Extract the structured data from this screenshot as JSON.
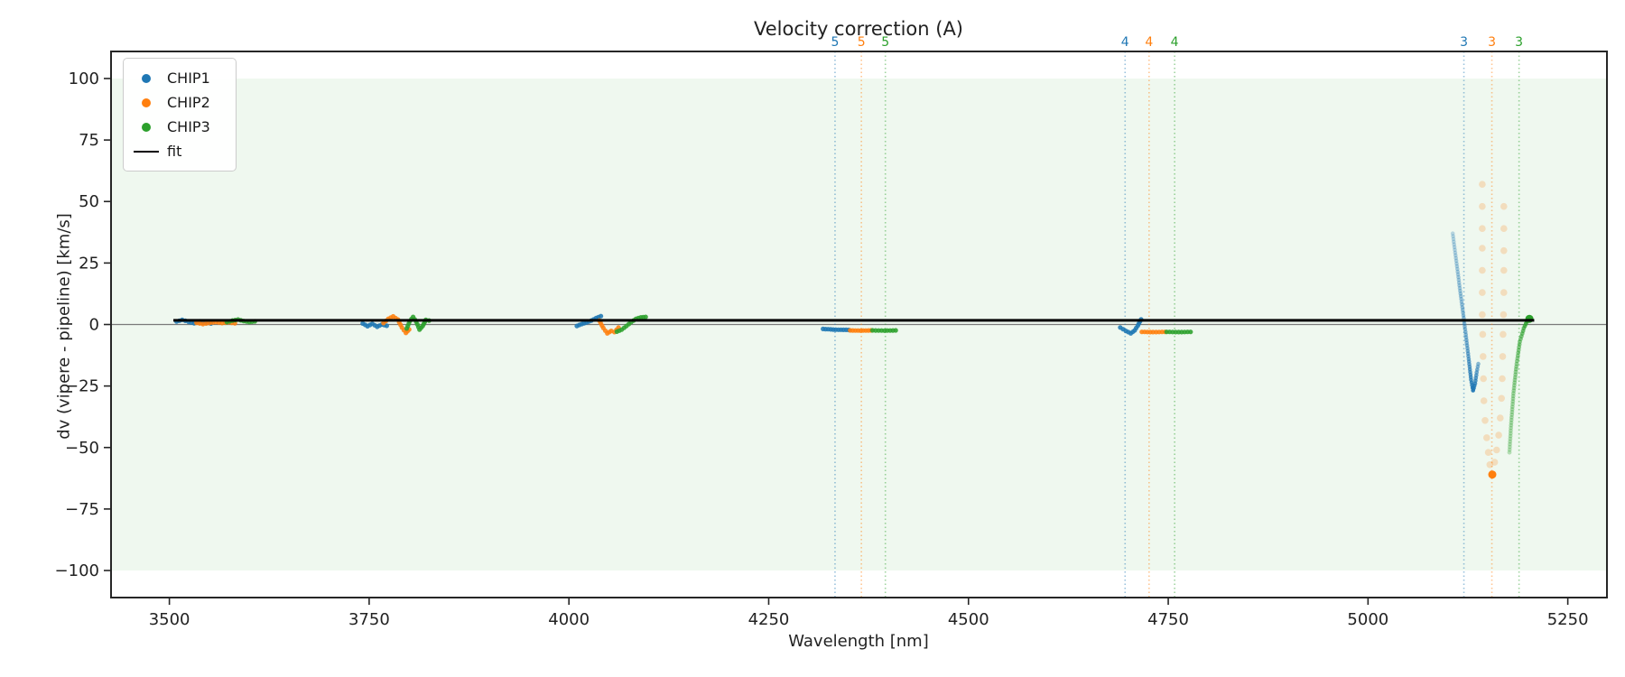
{
  "chart_data": {
    "type": "scatter",
    "title": "Velocity correction (A)",
    "xlabel": "Wavelength [nm]",
    "ylabel": "dv (vipere - pipeline) [km/s]",
    "xlim": [
      3427,
      5299
    ],
    "ylim": [
      -111,
      111
    ],
    "xticks": [
      3500,
      3750,
      4000,
      4250,
      4500,
      4750,
      5000,
      5250
    ],
    "yticks": [
      100,
      75,
      50,
      25,
      0,
      -25,
      -50,
      -75,
      -100
    ],
    "grid": false,
    "legend_position": "upper left",
    "colors": {
      "CHIP1": "#1f77b4",
      "CHIP2": "#ff7f0e",
      "CHIP3": "#2ca02c",
      "fit": "#000000",
      "zero_line": "#7a7a7a",
      "band": "rgba(44,160,44,0.075)",
      "spine": "#262626"
    },
    "band": {
      "ymin": -100,
      "ymax": 100
    },
    "zero_line_y": 0,
    "fit": {
      "label": "fit",
      "y": 1.7,
      "x_start": 3505,
      "x_end": 5208
    },
    "legend": [
      {
        "label": "CHIP1",
        "marker": "dot",
        "color": "#1f77b4"
      },
      {
        "label": "CHIP2",
        "marker": "dot",
        "color": "#ff7f0e"
      },
      {
        "label": "CHIP3",
        "marker": "dot",
        "color": "#2ca02c"
      },
      {
        "label": "fit",
        "marker": "line",
        "color": "#000000"
      }
    ],
    "vlines": [
      {
        "x": 4333,
        "label": "5",
        "color": "#1f77b4"
      },
      {
        "x": 4366,
        "label": "5",
        "color": "#ff7f0e"
      },
      {
        "x": 4396,
        "label": "5",
        "color": "#2ca02c"
      },
      {
        "x": 4696,
        "label": "4",
        "color": "#1f77b4"
      },
      {
        "x": 4726,
        "label": "4",
        "color": "#ff7f0e"
      },
      {
        "x": 4758,
        "label": "4",
        "color": "#2ca02c"
      },
      {
        "x": 5120,
        "label": "3",
        "color": "#1f77b4"
      },
      {
        "x": 5155,
        "label": "3",
        "color": "#ff7f0e"
      },
      {
        "x": 5189,
        "label": "3",
        "color": "#2ca02c"
      }
    ],
    "series": [
      {
        "name": "CHIP1",
        "color": "#1f77b4",
        "segments": [
          {
            "mode": "dense",
            "r": 2.6,
            "points": [
              [
                3509,
                1.2
              ],
              [
                3516,
                1.9
              ],
              [
                3524,
                1.1
              ],
              [
                3531,
                0.5
              ],
              [
                3538,
                1.3
              ],
              [
                3545,
                1.0
              ],
              [
                3552,
                0.4
              ]
            ]
          },
          {
            "mode": "dense",
            "r": 2.6,
            "points": [
              [
                3742,
                0.4
              ],
              [
                3748,
                -0.7
              ],
              [
                3754,
                0.3
              ],
              [
                3760,
                -0.9
              ],
              [
                3766,
                0.0
              ],
              [
                3772,
                -0.5
              ]
            ]
          },
          {
            "mode": "dense",
            "r": 2.6,
            "points": [
              [
                4010,
                -0.6
              ],
              [
                4016,
                0.2
              ],
              [
                4022,
                0.8
              ],
              [
                4028,
                1.6
              ],
              [
                4034,
                2.6
              ],
              [
                4040,
                3.4
              ]
            ]
          },
          {
            "mode": "dense",
            "r": 2.6,
            "points": [
              [
                4318,
                -1.8
              ],
              [
                4334,
                -2.1
              ],
              [
                4350,
                -2.2
              ]
            ]
          },
          {
            "mode": "dense",
            "r": 2.6,
            "points": [
              [
                4690,
                -1.2
              ],
              [
                4697,
                -2.6
              ],
              [
                4703,
                -3.6
              ],
              [
                4708,
                -2.4
              ],
              [
                4712,
                -0.4
              ],
              [
                4716,
                2.1
              ]
            ]
          },
          {
            "mode": "dense",
            "r": 2.3,
            "points": [
              [
                5106,
                37,
                0.28
              ],
              [
                5110,
                27,
                0.33
              ],
              [
                5114,
                17,
                0.38
              ],
              [
                5118,
                7,
                0.44
              ],
              [
                5122,
                -3,
                0.5
              ],
              [
                5126,
                -14,
                0.62
              ],
              [
                5129,
                -22.5,
                0.78
              ],
              [
                5131.5,
                -26.8,
                0.95
              ],
              [
                5134,
                -24,
                0.8
              ],
              [
                5136,
                -19.5,
                0.62
              ],
              [
                5138,
                -16,
                0.5
              ]
            ]
          }
        ]
      },
      {
        "name": "CHIP2",
        "color": "#ff7f0e",
        "segments": [
          {
            "mode": "dense",
            "r": 2.6,
            "points": [
              [
                3534,
                0.7
              ],
              [
                3542,
                0.2
              ],
              [
                3550,
                0.6
              ],
              [
                3558,
                1.0
              ],
              [
                3566,
                0.6
              ],
              [
                3574,
                0.9
              ],
              [
                3582,
                0.5
              ]
            ]
          },
          {
            "mode": "dense",
            "r": 2.6,
            "points": [
              [
                3768,
                0.6
              ],
              [
                3774,
                2.3
              ],
              [
                3780,
                3.3
              ],
              [
                3786,
                2.0
              ],
              [
                3791,
                -1.2
              ],
              [
                3796,
                -3.4
              ],
              [
                3800,
                -2.0
              ]
            ]
          },
          {
            "mode": "dense",
            "r": 2.6,
            "points": [
              [
                4038,
                1.6
              ],
              [
                4043,
                -1.4
              ],
              [
                4048,
                -3.6
              ],
              [
                4053,
                -2.6
              ],
              [
                4057,
                -3.1
              ],
              [
                4062,
                -1.2
              ]
            ]
          },
          {
            "mode": "dense",
            "r": 2.6,
            "points": [
              [
                4352,
                -2.4
              ],
              [
                4365,
                -2.5
              ],
              [
                4378,
                -2.4
              ]
            ]
          },
          {
            "mode": "dense",
            "r": 2.6,
            "points": [
              [
                4717,
                -3.0
              ],
              [
                4731,
                -3.1
              ],
              [
                4746,
                -3.0
              ]
            ]
          },
          {
            "mode": "sparse",
            "r": 3.8,
            "alpha": 0.22,
            "points": [
              [
                5143,
                57
              ],
              [
                5143,
                48
              ],
              [
                5143,
                39
              ],
              [
                5143,
                31
              ],
              [
                5143,
                22
              ],
              [
                5143,
                13
              ],
              [
                5143,
                4
              ],
              [
                5143.5,
                -4
              ],
              [
                5144,
                -13
              ],
              [
                5144.5,
                -22
              ],
              [
                5145,
                -31
              ],
              [
                5146.5,
                -39
              ],
              [
                5148.5,
                -46
              ],
              [
                5150.5,
                -52
              ],
              [
                5152.5,
                -57
              ]
            ]
          },
          {
            "mode": "sparse",
            "r": 3.8,
            "alpha": 0.22,
            "points": [
              [
                5170,
                48
              ],
              [
                5170,
                39
              ],
              [
                5170,
                30
              ],
              [
                5170,
                22
              ],
              [
                5170,
                13
              ],
              [
                5169.5,
                4
              ],
              [
                5169,
                -4
              ],
              [
                5168.5,
                -13
              ],
              [
                5168,
                -22
              ],
              [
                5167,
                -30
              ],
              [
                5165.5,
                -38
              ],
              [
                5163.5,
                -45
              ],
              [
                5161,
                -51
              ],
              [
                5158.5,
                -56
              ]
            ]
          },
          {
            "mode": "blob",
            "r": 4.5,
            "alpha": 1,
            "points": [
              [
                5155.5,
                -61
              ]
            ]
          }
        ]
      },
      {
        "name": "CHIP3",
        "color": "#2ca02c",
        "segments": [
          {
            "mode": "dense",
            "r": 2.6,
            "points": [
              [
                3572,
                1.0
              ],
              [
                3579,
                1.6
              ],
              [
                3586,
                2.0
              ],
              [
                3593,
                1.4
              ],
              [
                3600,
                1.0
              ],
              [
                3607,
                1.3
              ]
            ]
          },
          {
            "mode": "dense",
            "r": 2.6,
            "points": [
              [
                3797,
                -1.6
              ],
              [
                3801,
                1.4
              ],
              [
                3805,
                3.1
              ],
              [
                3809,
                1.1
              ],
              [
                3813,
                -2.1
              ],
              [
                3817,
                -0.6
              ],
              [
                3821,
                1.9
              ],
              [
                3825,
                1.6
              ]
            ]
          },
          {
            "mode": "dense",
            "r": 2.6,
            "points": [
              [
                4060,
                -2.9
              ],
              [
                4066,
                -2.1
              ],
              [
                4072,
                -0.6
              ],
              [
                4078,
                1.0
              ],
              [
                4084,
                2.3
              ],
              [
                4090,
                2.9
              ],
              [
                4096,
                3.1
              ]
            ]
          },
          {
            "mode": "dense",
            "r": 2.6,
            "points": [
              [
                4380,
                -2.4
              ],
              [
                4395,
                -2.5
              ],
              [
                4409,
                -2.4
              ]
            ]
          },
          {
            "mode": "dense",
            "r": 2.6,
            "points": [
              [
                4748,
                -3.0
              ],
              [
                4763,
                -3.1
              ],
              [
                4778,
                -3.0
              ]
            ]
          },
          {
            "mode": "dense",
            "r": 2.4,
            "points": [
              [
                5177,
                -52,
                0.3
              ],
              [
                5179,
                -41,
                0.35
              ],
              [
                5182,
                -28,
                0.4
              ],
              [
                5186,
                -16,
                0.47
              ],
              [
                5190,
                -7,
                0.55
              ],
              [
                5195,
                -1.5,
                0.7
              ],
              [
                5199,
                1.3,
                0.9
              ]
            ]
          },
          {
            "mode": "blob",
            "r": 4.5,
            "alpha": 1,
            "points": [
              [
                5202,
                2.3
              ]
            ]
          }
        ]
      }
    ]
  }
}
